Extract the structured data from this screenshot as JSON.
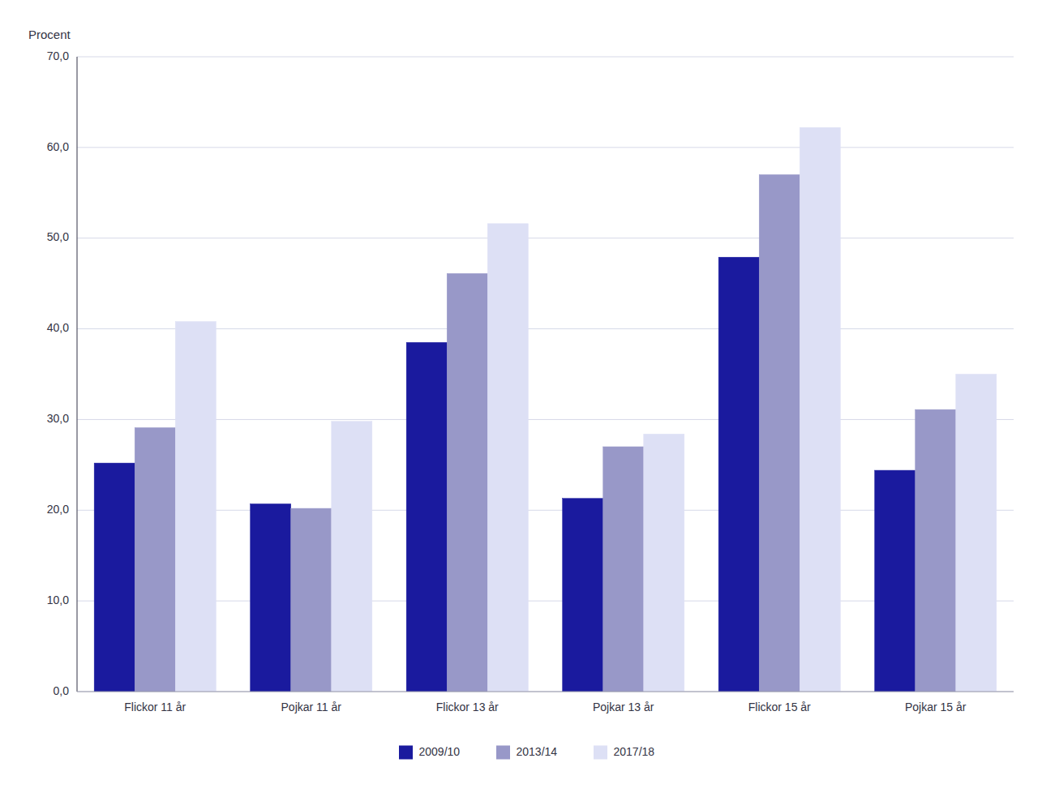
{
  "chart_data": {
    "type": "bar",
    "y_label": "Procent",
    "categories": [
      "Flickor 11 år",
      "Pojkar 11 år",
      "Flickor 13 år",
      "Pojkar 13 år",
      "Flickor 15 år",
      "Pojkar 15 år"
    ],
    "series": [
      {
        "name": "2009/10",
        "color": "#1a1a9e",
        "values": [
          25.2,
          20.7,
          38.5,
          21.3,
          47.9,
          24.4
        ]
      },
      {
        "name": "2013/14",
        "color": "#9898c8",
        "values": [
          29.1,
          20.2,
          46.1,
          27.0,
          57.0,
          31.1
        ]
      },
      {
        "name": "2017/18",
        "color": "#dde0f5",
        "values": [
          40.8,
          29.8,
          51.6,
          28.4,
          62.2,
          35.0
        ]
      }
    ],
    "ylim": [
      0,
      70
    ],
    "yticks": [
      {
        "value": 0,
        "label": "0,0"
      },
      {
        "value": 10,
        "label": "10,0"
      },
      {
        "value": 20,
        "label": "20,0"
      },
      {
        "value": 30,
        "label": "30,0"
      },
      {
        "value": 40,
        "label": "40,0"
      },
      {
        "value": 50,
        "label": "50,0"
      },
      {
        "value": 60,
        "label": "60,0"
      },
      {
        "value": 70,
        "label": "70,0"
      }
    ],
    "grid": true,
    "legend": "bottom"
  }
}
